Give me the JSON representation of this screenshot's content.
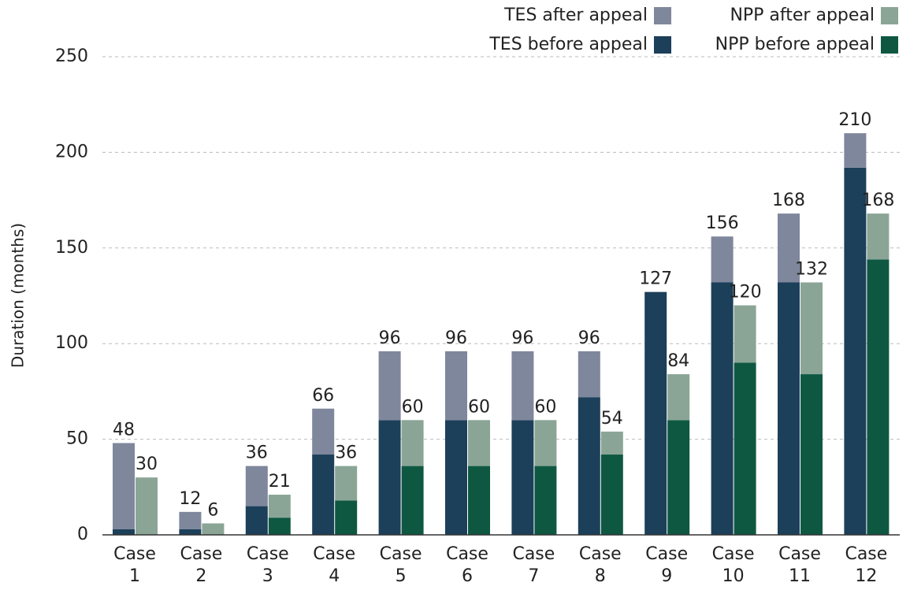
{
  "chart_data": {
    "type": "grouped_stacked_bar",
    "y_label": "Duration (months)",
    "categories": [
      "Case 1",
      "Case 2",
      "Case 3",
      "Case 4",
      "Case 5",
      "Case 6",
      "Case 7",
      "Case 8",
      "Case 9",
      "Case 10",
      "Case 11",
      "Case 12"
    ],
    "series": [
      {
        "name": "TES before appeal",
        "stack": "TES",
        "color": "#1c3f5a",
        "values": [
          3,
          3,
          15,
          42,
          60,
          60,
          60,
          72,
          127,
          132,
          132,
          192
        ]
      },
      {
        "name": "TES after appeal",
        "stack": "TES",
        "color": "#7f879c",
        "values": [
          45,
          9,
          21,
          24,
          36,
          36,
          36,
          24,
          0,
          24,
          36,
          18
        ]
      },
      {
        "name": "NPP before appeal",
        "stack": "NPP",
        "color": "#0e5842",
        "values": [
          0,
          0,
          9,
          18,
          36,
          36,
          36,
          42,
          60,
          90,
          84,
          144
        ]
      },
      {
        "name": "NPP after appeal",
        "stack": "NPP",
        "color": "#8aa596",
        "values": [
          30,
          6,
          12,
          18,
          24,
          24,
          24,
          12,
          24,
          30,
          48,
          24
        ]
      }
    ],
    "stack_totals": {
      "TES": [
        48,
        12,
        36,
        66,
        96,
        96,
        96,
        96,
        127,
        156,
        168,
        210
      ],
      "NPP": [
        30,
        6,
        21,
        36,
        60,
        60,
        60,
        54,
        84,
        120,
        132,
        168
      ]
    },
    "ylim": [
      0,
      250
    ],
    "yticks": [
      0,
      50,
      100,
      150,
      200,
      250
    ],
    "grid": true
  }
}
